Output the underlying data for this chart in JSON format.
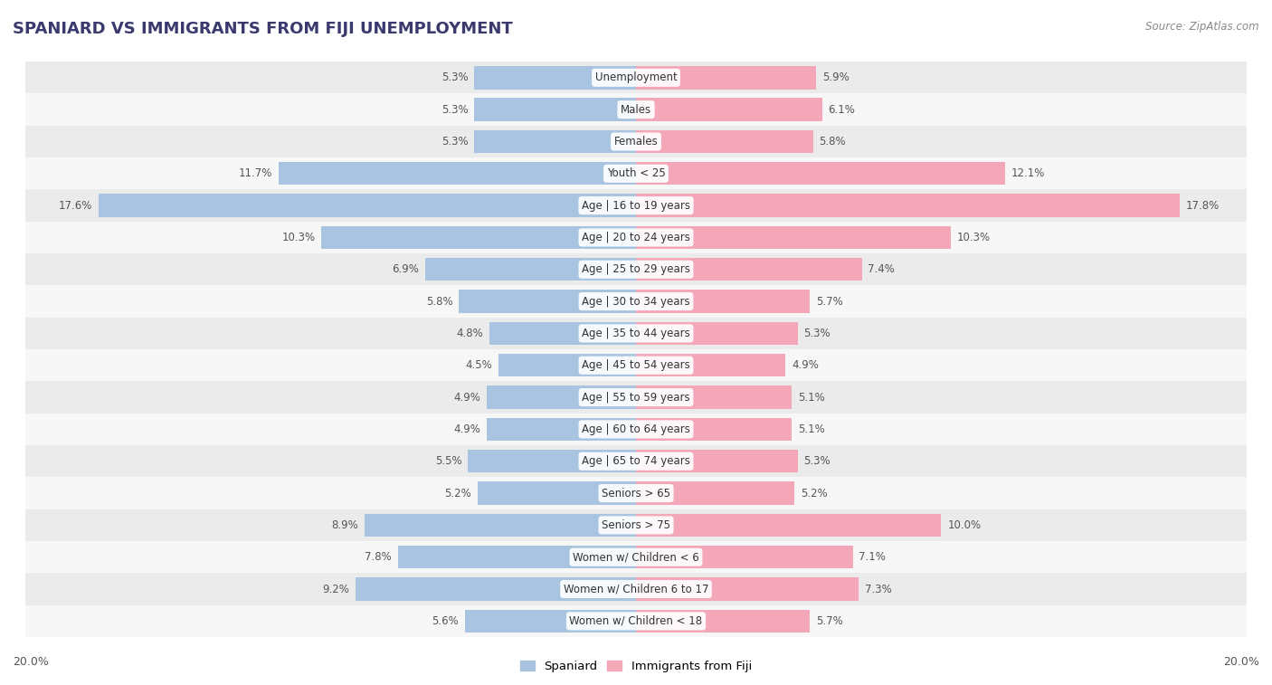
{
  "title": "SPANIARD VS IMMIGRANTS FROM FIJI UNEMPLOYMENT",
  "source": "Source: ZipAtlas.com",
  "categories": [
    "Unemployment",
    "Males",
    "Females",
    "Youth < 25",
    "Age | 16 to 19 years",
    "Age | 20 to 24 years",
    "Age | 25 to 29 years",
    "Age | 30 to 34 years",
    "Age | 35 to 44 years",
    "Age | 45 to 54 years",
    "Age | 55 to 59 years",
    "Age | 60 to 64 years",
    "Age | 65 to 74 years",
    "Seniors > 65",
    "Seniors > 75",
    "Women w/ Children < 6",
    "Women w/ Children 6 to 17",
    "Women w/ Children < 18"
  ],
  "spaniard": [
    5.3,
    5.3,
    5.3,
    11.7,
    17.6,
    10.3,
    6.9,
    5.8,
    4.8,
    4.5,
    4.9,
    4.9,
    5.5,
    5.2,
    8.9,
    7.8,
    9.2,
    5.6
  ],
  "fiji": [
    5.9,
    6.1,
    5.8,
    12.1,
    17.8,
    10.3,
    7.4,
    5.7,
    5.3,
    4.9,
    5.1,
    5.1,
    5.3,
    5.2,
    10.0,
    7.1,
    7.3,
    5.7
  ],
  "spaniard_color": "#a8c4e0",
  "fiji_color": "#f4a7b9",
  "row_bg_light": "#ebebeb",
  "row_bg_white": "#f7f7f7",
  "xlim": 20.0,
  "legend_spaniard": "Spaniard",
  "legend_fiji": "Immigrants from Fiji",
  "title_color": "#3a3a6e",
  "label_color": "#555555",
  "source_color": "#888888"
}
